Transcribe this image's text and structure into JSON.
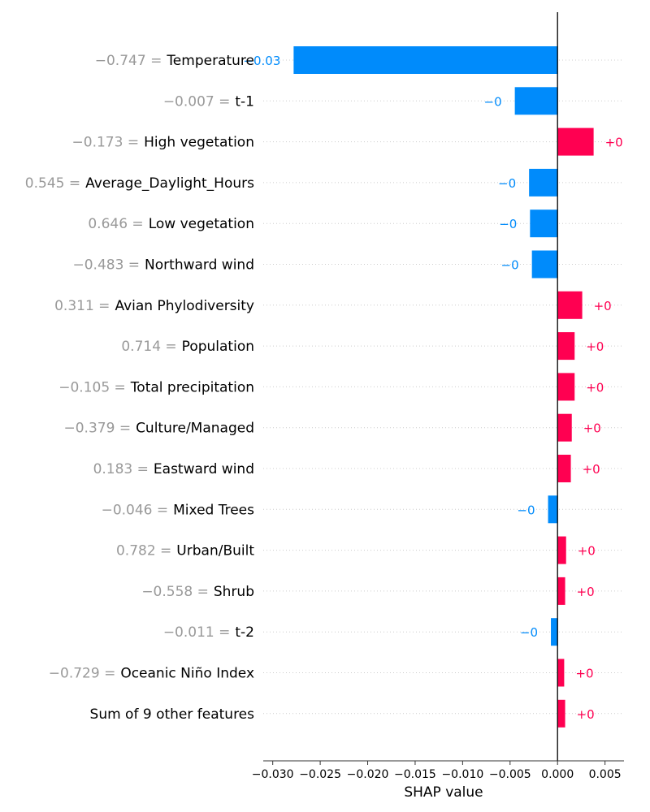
{
  "chart_data": {
    "type": "bar",
    "subtype": "shap-waterfall-bar",
    "xlabel": "SHAP value",
    "xlim": [
      -0.031,
      0.007
    ],
    "xticks": [
      -0.03,
      -0.025,
      -0.02,
      -0.015,
      -0.01,
      -0.005,
      0.0,
      0.005
    ],
    "xtick_labels": [
      "−0.030",
      "−0.025",
      "−0.020",
      "−0.015",
      "−0.010",
      "−0.005",
      "0.000",
      "0.005"
    ],
    "grid": "horizontal dotted",
    "colors": {
      "positive": "#ff0051",
      "negative": "#008bfb",
      "feature_value": "#999999",
      "label": "#000000"
    },
    "features": [
      {
        "value_label": "−0.747 =",
        "name": "Temperature",
        "shap": -0.0278,
        "label": "−0.03"
      },
      {
        "value_label": "−0.007 =",
        "name": "t-1",
        "shap": -0.0045,
        "label": "−0"
      },
      {
        "value_label": "−0.173 =",
        "name": "High vegetation",
        "shap": 0.0038,
        "label": "+0"
      },
      {
        "value_label": "0.545 =",
        "name": "Average_Daylight_Hours",
        "shap": -0.003,
        "label": "−0"
      },
      {
        "value_label": "0.646 =",
        "name": "Low vegetation",
        "shap": -0.0029,
        "label": "−0"
      },
      {
        "value_label": "−0.483 =",
        "name": "Northward wind",
        "shap": -0.0027,
        "label": "−0"
      },
      {
        "value_label": "0.311 =",
        "name": "Avian Phylodiversity",
        "shap": 0.0026,
        "label": "+0"
      },
      {
        "value_label": "0.714 =",
        "name": "Population",
        "shap": 0.0018,
        "label": "+0"
      },
      {
        "value_label": "−0.105 =",
        "name": "Total precipitation",
        "shap": 0.0018,
        "label": "+0"
      },
      {
        "value_label": "−0.379 =",
        "name": "Culture/Managed",
        "shap": 0.0015,
        "label": "+0"
      },
      {
        "value_label": "0.183 =",
        "name": "Eastward wind",
        "shap": 0.0014,
        "label": "+0"
      },
      {
        "value_label": "−0.046 =",
        "name": "Mixed Trees",
        "shap": -0.001,
        "label": "−0"
      },
      {
        "value_label": "0.782 =",
        "name": "Urban/Built",
        "shap": 0.0009,
        "label": "+0"
      },
      {
        "value_label": "−0.558 =",
        "name": "Shrub",
        "shap": 0.0008,
        "label": "+0"
      },
      {
        "value_label": "−0.011 =",
        "name": "t-2",
        "shap": -0.0007,
        "label": "−0"
      },
      {
        "value_label": "−0.729 =",
        "name": "Oceanic Niño Index",
        "shap": 0.0007,
        "label": "+0"
      },
      {
        "value_label": "",
        "name": "Sum of 9 other features",
        "shap": 0.0008,
        "label": "+0"
      }
    ]
  }
}
